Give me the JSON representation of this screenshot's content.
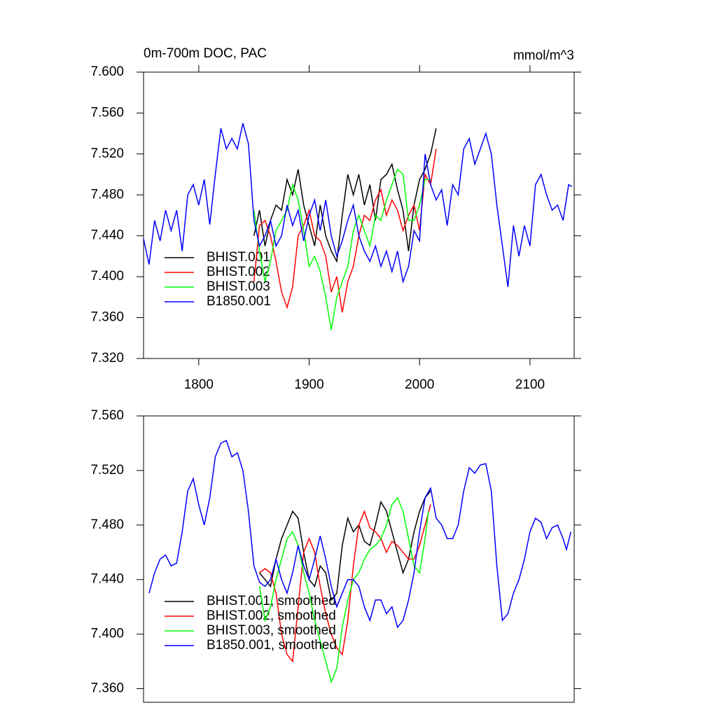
{
  "chart_data": [
    {
      "type": "line",
      "title": "0m-700m DOC, PAC",
      "y_units": "mmol/m^3",
      "xlim": [
        1750,
        2140
      ],
      "xticks": [
        1800,
        1900,
        2000,
        2100
      ],
      "ylim": [
        7.32,
        7.6
      ],
      "yticks": [
        {
          "value": 7.32,
          "label": "7.320"
        },
        {
          "value": 7.36,
          "label": "7.360"
        },
        {
          "value": 7.4,
          "label": "7.400"
        },
        {
          "value": 7.44,
          "label": "7.440"
        },
        {
          "value": 7.48,
          "label": "7.480"
        },
        {
          "value": 7.52,
          "label": "7.520"
        },
        {
          "value": 7.56,
          "label": "7.560"
        },
        {
          "value": 7.6,
          "label": "7.600"
        }
      ],
      "legend": "lower left",
      "series": [
        {
          "name": "BHIST.001",
          "color": "#000000",
          "x": [
            1850,
            1855,
            1860,
            1865,
            1870,
            1875,
            1880,
            1885,
            1890,
            1895,
            1900,
            1905,
            1910,
            1915,
            1920,
            1925,
            1930,
            1935,
            1940,
            1945,
            1950,
            1955,
            1960,
            1965,
            1970,
            1975,
            1980,
            1985,
            1990,
            1995,
            2000,
            2005,
            2010,
            2015
          ],
          "values": [
            7.44,
            7.465,
            7.43,
            7.455,
            7.47,
            7.465,
            7.495,
            7.48,
            7.505,
            7.47,
            7.45,
            7.43,
            7.47,
            7.44,
            7.425,
            7.415,
            7.46,
            7.5,
            7.48,
            7.5,
            7.47,
            7.49,
            7.455,
            7.495,
            7.5,
            7.51,
            7.485,
            7.465,
            7.425,
            7.47,
            7.495,
            7.505,
            7.52,
            7.545
          ]
        },
        {
          "name": "BHIST.002",
          "color": "#ff0000",
          "x": [
            1850,
            1855,
            1860,
            1865,
            1870,
            1875,
            1880,
            1885,
            1890,
            1895,
            1900,
            1905,
            1910,
            1915,
            1920,
            1925,
            1930,
            1935,
            1940,
            1945,
            1950,
            1955,
            1960,
            1965,
            1970,
            1975,
            1980,
            1985,
            1990,
            1995,
            2000,
            2005,
            2010,
            2015
          ],
          "values": [
            7.395,
            7.45,
            7.455,
            7.44,
            7.415,
            7.385,
            7.37,
            7.39,
            7.44,
            7.45,
            7.465,
            7.44,
            7.435,
            7.42,
            7.385,
            7.4,
            7.365,
            7.395,
            7.41,
            7.44,
            7.46,
            7.455,
            7.475,
            7.485,
            7.46,
            7.475,
            7.465,
            7.445,
            7.46,
            7.47,
            7.445,
            7.5,
            7.49,
            7.525
          ]
        },
        {
          "name": "BHIST.003",
          "color": "#00ff00",
          "x": [
            1850,
            1855,
            1860,
            1865,
            1870,
            1875,
            1880,
            1885,
            1890,
            1895,
            1900,
            1905,
            1910,
            1915,
            1920,
            1925,
            1930,
            1935,
            1940,
            1945,
            1950,
            1955,
            1960,
            1965,
            1970,
            1975,
            1980,
            1985,
            1990,
            1995,
            2000,
            2005,
            2010
          ],
          "values": [
            7.465,
            7.425,
            7.395,
            7.415,
            7.445,
            7.455,
            7.465,
            7.49,
            7.475,
            7.445,
            7.41,
            7.42,
            7.405,
            7.38,
            7.348,
            7.38,
            7.395,
            7.41,
            7.445,
            7.46,
            7.445,
            7.43,
            7.46,
            7.455,
            7.475,
            7.49,
            7.505,
            7.5,
            7.455,
            7.455,
            7.47,
            7.495,
            7.495
          ]
        },
        {
          "name": "B1850.001",
          "color": "#0000ff",
          "x": [
            1750,
            1755,
            1760,
            1765,
            1770,
            1775,
            1780,
            1785,
            1790,
            1795,
            1800,
            1805,
            1810,
            1815,
            1820,
            1825,
            1830,
            1835,
            1840,
            1845,
            1850,
            1855,
            1860,
            1865,
            1870,
            1875,
            1880,
            1885,
            1890,
            1895,
            1900,
            1905,
            1910,
            1915,
            1920,
            1925,
            1930,
            1935,
            1940,
            1945,
            1950,
            1955,
            1960,
            1965,
            1970,
            1975,
            1980,
            1985,
            1990,
            1995,
            2000,
            2005,
            2010,
            2015,
            2020,
            2025,
            2030,
            2035,
            2040,
            2045,
            2050,
            2055,
            2060,
            2065,
            2070,
            2075,
            2080,
            2085,
            2090,
            2095,
            2100,
            2105,
            2110,
            2115,
            2120,
            2125,
            2130,
            2135,
            2138
          ],
          "values": [
            7.437,
            7.412,
            7.455,
            7.435,
            7.465,
            7.445,
            7.465,
            7.425,
            7.48,
            7.49,
            7.47,
            7.495,
            7.451,
            7.5,
            7.545,
            7.525,
            7.535,
            7.525,
            7.55,
            7.53,
            7.455,
            7.43,
            7.44,
            7.455,
            7.43,
            7.44,
            7.47,
            7.45,
            7.465,
            7.435,
            7.46,
            7.475,
            7.445,
            7.475,
            7.44,
            7.42,
            7.435,
            7.455,
            7.47,
            7.44,
            7.425,
            7.415,
            7.43,
            7.41,
            7.425,
            7.405,
            7.425,
            7.395,
            7.41,
            7.445,
            7.435,
            7.52,
            7.49,
            7.475,
            7.485,
            7.45,
            7.49,
            7.48,
            7.525,
            7.535,
            7.51,
            7.525,
            7.54,
            7.52,
            7.47,
            7.43,
            7.39,
            7.45,
            7.42,
            7.45,
            7.43,
            7.49,
            7.5,
            7.48,
            7.465,
            7.47,
            7.455,
            7.49,
            7.488
          ]
        }
      ]
    },
    {
      "type": "line",
      "xlim": [
        1750,
        2140
      ],
      "ylim": [
        7.35,
        7.56
      ],
      "yticks": [
        {
          "value": 7.36,
          "label": "7.360"
        },
        {
          "value": 7.4,
          "label": "7.400"
        },
        {
          "value": 7.44,
          "label": "7.440"
        },
        {
          "value": 7.48,
          "label": "7.480"
        },
        {
          "value": 7.52,
          "label": "7.520"
        },
        {
          "value": 7.56,
          "label": "7.560"
        }
      ],
      "legend": "lower left",
      "series": [
        {
          "name": "BHIST.001, smoothed",
          "color": "#000000",
          "x": [
            1855,
            1860,
            1865,
            1870,
            1875,
            1880,
            1885,
            1890,
            1895,
            1900,
            1905,
            1910,
            1915,
            1920,
            1925,
            1930,
            1935,
            1940,
            1945,
            1950,
            1955,
            1960,
            1965,
            1970,
            1975,
            1980,
            1985,
            1990,
            1995,
            2000,
            2005,
            2010
          ],
          "values": [
            7.445,
            7.44,
            7.435,
            7.455,
            7.47,
            7.48,
            7.49,
            7.485,
            7.46,
            7.44,
            7.435,
            7.45,
            7.445,
            7.425,
            7.43,
            7.465,
            7.485,
            7.475,
            7.48,
            7.468,
            7.465,
            7.48,
            7.497,
            7.49,
            7.475,
            7.46,
            7.445,
            7.455,
            7.475,
            7.49,
            7.5,
            7.505
          ]
        },
        {
          "name": "BHIST.002, smoothed",
          "color": "#ff0000",
          "x": [
            1855,
            1860,
            1865,
            1870,
            1875,
            1880,
            1885,
            1890,
            1895,
            1900,
            1905,
            1910,
            1915,
            1920,
            1925,
            1930,
            1935,
            1940,
            1945,
            1950,
            1955,
            1960,
            1965,
            1970,
            1975,
            1980,
            1985,
            1990,
            1995,
            2000,
            2005,
            2010
          ],
          "values": [
            7.445,
            7.448,
            7.445,
            7.43,
            7.4,
            7.385,
            7.38,
            7.42,
            7.46,
            7.47,
            7.46,
            7.435,
            7.415,
            7.4,
            7.39,
            7.385,
            7.41,
            7.45,
            7.48,
            7.49,
            7.478,
            7.475,
            7.47,
            7.46,
            7.468,
            7.465,
            7.46,
            7.455,
            7.455,
            7.465,
            7.48,
            7.495
          ]
        },
        {
          "name": "BHIST.003, smoothed",
          "color": "#00ff00",
          "x": [
            1855,
            1860,
            1865,
            1870,
            1875,
            1880,
            1885,
            1890,
            1895,
            1900,
            1905,
            1910,
            1915,
            1920,
            1925,
            1930,
            1935,
            1940,
            1945,
            1950,
            1955,
            1960,
            1965,
            1970,
            1975,
            1980,
            1985,
            1990,
            1995,
            2000,
            2005,
            2008
          ],
          "values": [
            7.435,
            7.41,
            7.42,
            7.44,
            7.455,
            7.47,
            7.475,
            7.465,
            7.445,
            7.43,
            7.41,
            7.395,
            7.38,
            7.365,
            7.375,
            7.405,
            7.425,
            7.44,
            7.445,
            7.455,
            7.462,
            7.465,
            7.47,
            7.48,
            7.495,
            7.5,
            7.49,
            7.47,
            7.45,
            7.445,
            7.47,
            7.49
          ]
        },
        {
          "name": "B1850.001, smoothed",
          "color": "#0000ff",
          "x": [
            1755,
            1760,
            1765,
            1770,
            1775,
            1780,
            1785,
            1790,
            1795,
            1800,
            1805,
            1810,
            1815,
            1820,
            1825,
            1830,
            1835,
            1840,
            1845,
            1850,
            1855,
            1860,
            1865,
            1870,
            1875,
            1880,
            1885,
            1890,
            1895,
            1900,
            1905,
            1910,
            1915,
            1920,
            1925,
            1930,
            1935,
            1940,
            1945,
            1950,
            1955,
            1960,
            1965,
            1970,
            1975,
            1980,
            1985,
            1990,
            1995,
            2000,
            2005,
            2010,
            2015,
            2020,
            2025,
            2030,
            2035,
            2040,
            2045,
            2050,
            2055,
            2060,
            2065,
            2070,
            2075,
            2080,
            2085,
            2090,
            2095,
            2100,
            2105,
            2110,
            2115,
            2120,
            2125,
            2130,
            2133,
            2137
          ],
          "values": [
            7.43,
            7.445,
            7.455,
            7.458,
            7.45,
            7.452,
            7.475,
            7.505,
            7.514,
            7.495,
            7.48,
            7.5,
            7.53,
            7.54,
            7.542,
            7.53,
            7.533,
            7.52,
            7.49,
            7.45,
            7.438,
            7.435,
            7.44,
            7.455,
            7.44,
            7.43,
            7.445,
            7.465,
            7.45,
            7.44,
            7.455,
            7.472,
            7.455,
            7.435,
            7.42,
            7.43,
            7.44,
            7.44,
            7.435,
            7.42,
            7.41,
            7.425,
            7.425,
            7.415,
            7.42,
            7.405,
            7.41,
            7.425,
            7.445,
            7.475,
            7.5,
            7.507,
            7.485,
            7.48,
            7.47,
            7.47,
            7.48,
            7.505,
            7.522,
            7.518,
            7.524,
            7.525,
            7.505,
            7.45,
            7.41,
            7.415,
            7.43,
            7.44,
            7.455,
            7.475,
            7.485,
            7.482,
            7.47,
            7.478,
            7.48,
            7.47,
            7.462,
            7.475
          ]
        }
      ]
    }
  ]
}
